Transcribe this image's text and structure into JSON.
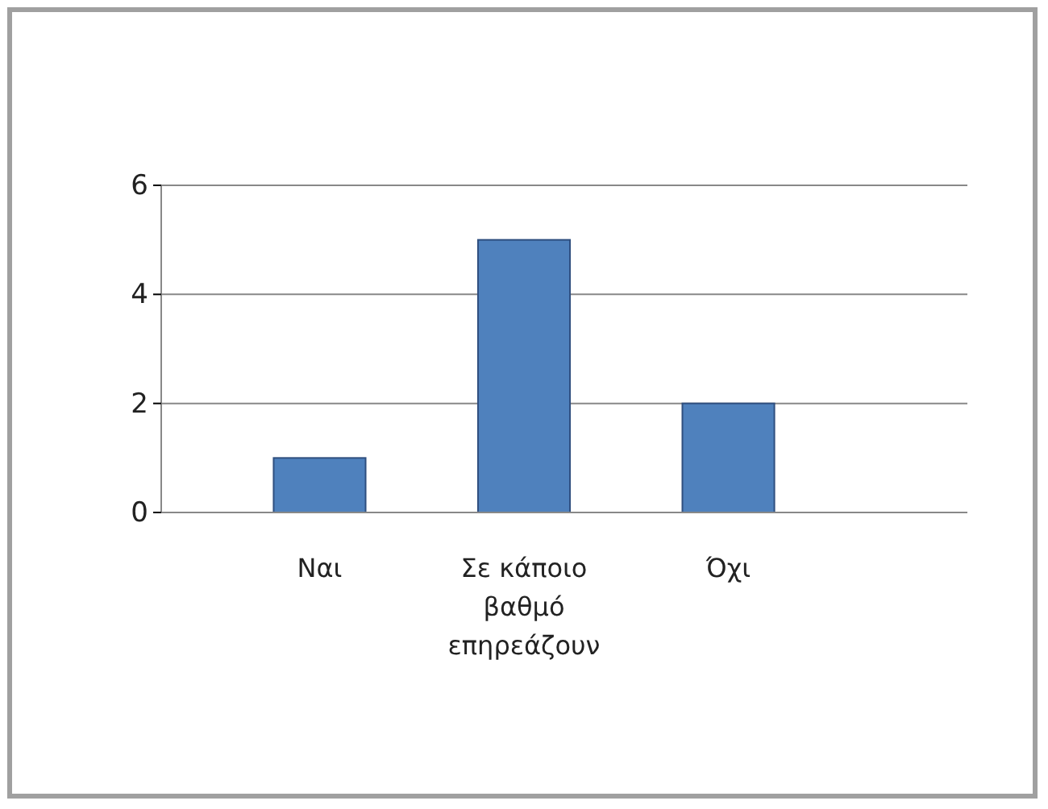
{
  "chart_data": {
    "type": "bar",
    "categories": [
      "Ναι",
      "Σε κάποιο βαθμό επηρεάζουν",
      "Όχι"
    ],
    "values": [
      1,
      5,
      2
    ],
    "color": "#4f81bd",
    "ylim": [
      0,
      6
    ],
    "yticks": [
      0,
      2,
      4,
      6
    ],
    "grid": "y"
  }
}
